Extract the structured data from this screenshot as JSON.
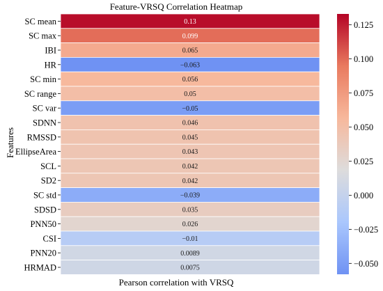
{
  "chart_data": {
    "type": "heatmap",
    "title": "Feature-VRSQ Correlation Heatmap",
    "xlabel": "Pearson correlation with VRSQ",
    "ylabel": "Features",
    "categories": [
      "SC mean",
      "SC max",
      "IBI",
      "HR",
      "SC min",
      "SC range",
      "SC var",
      "SDNN",
      "RMSSD",
      "EllipseArea",
      "SCL",
      "SD2",
      "SC std",
      "SDSD",
      "PNN50",
      "CSI",
      "PNN20",
      "HRMAD"
    ],
    "values": [
      0.13,
      0.099,
      0.065,
      -0.063,
      0.056,
      0.05,
      -0.05,
      0.046,
      0.045,
      0.043,
      0.042,
      0.042,
      -0.039,
      0.035,
      0.026,
      -0.01,
      0.0089,
      0.0075
    ],
    "value_labels": [
      "0.13",
      "0.099",
      "0.065",
      "−0.063",
      "0.056",
      "0.05",
      "−0.05",
      "0.046",
      "0.045",
      "0.043",
      "0.042",
      "0.042",
      "−0.039",
      "0.035",
      "0.026",
      "−0.01",
      "0.0089",
      "0.0075"
    ],
    "colorbar": {
      "range": [
        -0.058,
        0.133
      ],
      "ticks": [
        0.125,
        0.1,
        0.075,
        0.05,
        0.025,
        0.0,
        -0.025,
        -0.05
      ],
      "tick_labels": [
        "0.125",
        "0.100",
        "0.075",
        "0.050",
        "0.025",
        "0.000",
        "−0.025",
        "−0.050"
      ],
      "colormap": "coolwarm",
      "color_stops": [
        "#6f92f3",
        "#aac7fd",
        "#dddcdc",
        "#f7b89c",
        "#e97a5f",
        "#b40426"
      ]
    }
  }
}
